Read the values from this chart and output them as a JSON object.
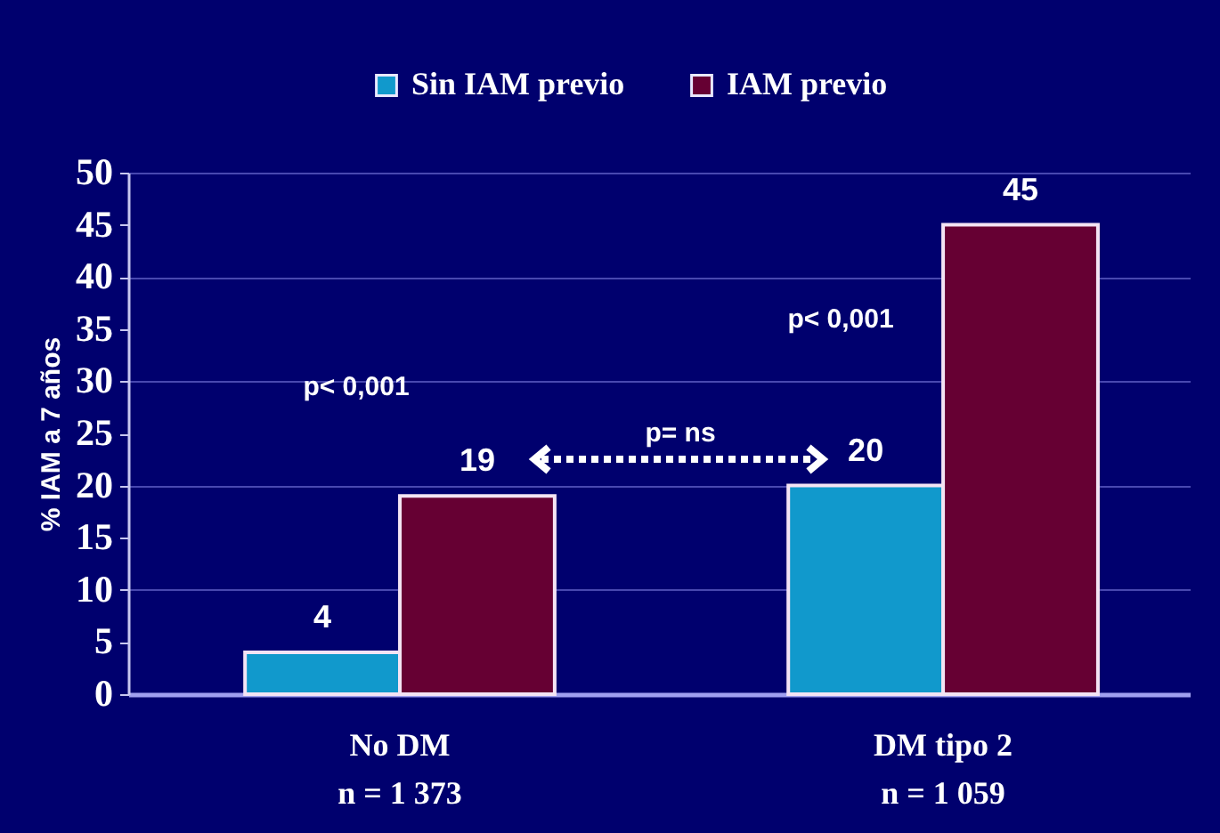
{
  "chart_data": {
    "type": "bar",
    "categories": [
      "No DM\nn = 1 373",
      "DM tipo 2\nn = 1 059"
    ],
    "series": [
      {
        "name": "Sin IAM previo",
        "color": "#1199cc",
        "values": [
          4,
          20
        ]
      },
      {
        "name": "IAM previo",
        "color": "#660033",
        "values": [
          19,
          45
        ]
      }
    ],
    "ylabel": "% IAM a 7 años",
    "ylim": [
      0,
      50
    ],
    "yticks": [
      0,
      5,
      10,
      15,
      20,
      25,
      30,
      35,
      40,
      45,
      50
    ],
    "grid": "y",
    "legend": "top",
    "data_labels": true,
    "annotations": [
      "p< 0,001",
      "p< 0,001",
      "p= ns"
    ]
  }
}
